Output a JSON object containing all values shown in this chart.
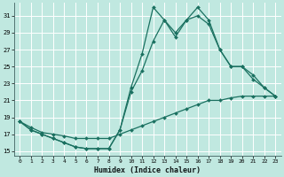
{
  "xlabel": "Humidex (Indice chaleur)",
  "background_color": "#c0e8e0",
  "grid_color": "#ffffff",
  "line_color": "#1a7060",
  "xlim": [
    -0.5,
    23.5
  ],
  "ylim": [
    14.5,
    32.5
  ],
  "xticks": [
    0,
    1,
    2,
    3,
    4,
    5,
    6,
    7,
    8,
    9,
    10,
    11,
    12,
    13,
    14,
    15,
    16,
    17,
    18,
    19,
    20,
    21,
    22,
    23
  ],
  "yticks": [
    15,
    17,
    19,
    21,
    23,
    25,
    27,
    29,
    31
  ],
  "line1_y": [
    18.5,
    17.5,
    17.0,
    16.5,
    16.0,
    15.5,
    15.3,
    15.3,
    15.3,
    17.5,
    22.5,
    26.5,
    32.0,
    30.5,
    29.0,
    30.5,
    32.0,
    30.5,
    27.0,
    25.0,
    25.0,
    24.0,
    22.5,
    21.5
  ],
  "line2_y": [
    18.5,
    17.5,
    17.0,
    16.5,
    16.0,
    15.5,
    15.3,
    15.3,
    15.3,
    17.5,
    22.0,
    24.5,
    28.0,
    30.5,
    28.5,
    30.5,
    31.0,
    30.0,
    27.0,
    25.0,
    25.0,
    23.5,
    22.5,
    21.5
  ],
  "line3_y": [
    18.5,
    17.8,
    17.2,
    17.0,
    16.8,
    16.5,
    16.5,
    16.5,
    16.5,
    17.0,
    17.5,
    18.0,
    18.5,
    19.0,
    19.5,
    20.0,
    20.5,
    21.0,
    21.0,
    21.3,
    21.5,
    21.5,
    21.5,
    21.5
  ]
}
